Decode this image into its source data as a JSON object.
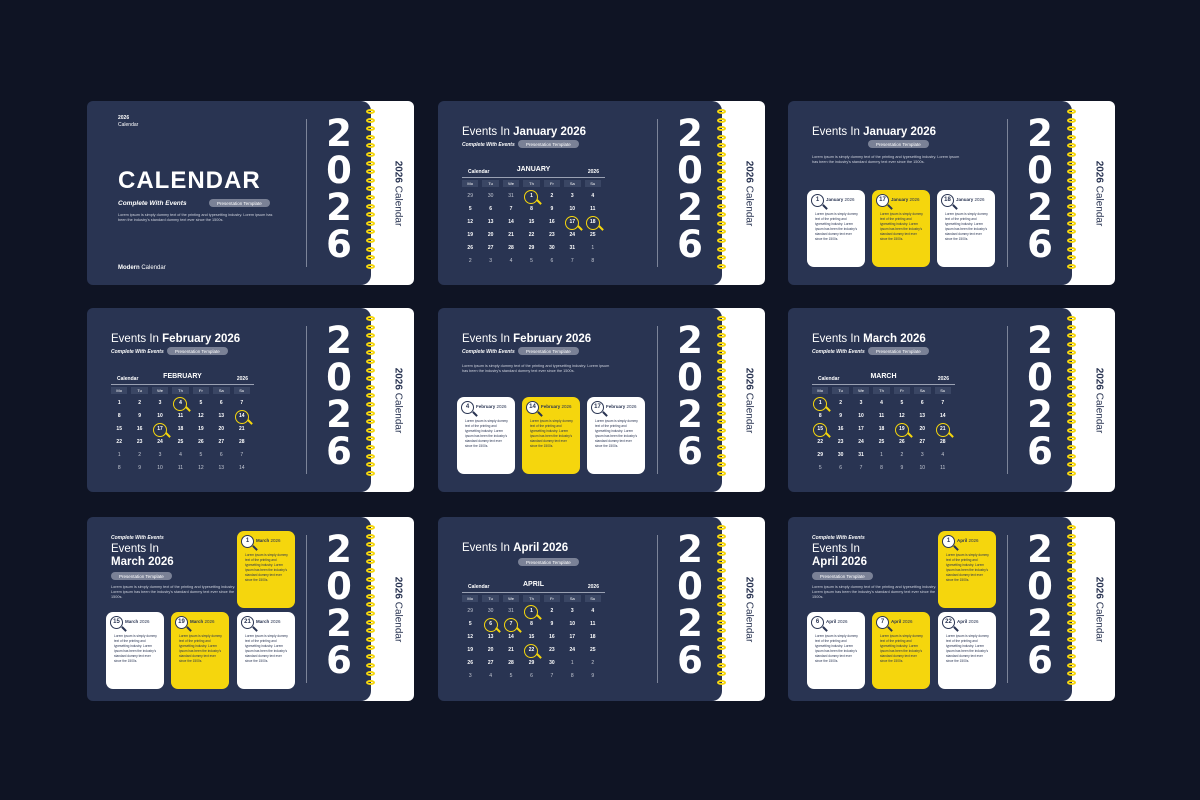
{
  "colors": {
    "background": "#0f1424",
    "slide": "#293452",
    "accent": "#f5d60d",
    "page": "#ffffff"
  },
  "year_digits": [
    "2",
    "0",
    "2",
    "6"
  ],
  "side_label": {
    "year": "2026",
    "word": "Calendar"
  },
  "weekdays": [
    "Mo",
    "Tu",
    "We",
    "Th",
    "Fr",
    "Sa",
    "Su"
  ],
  "lorem": "Lorem ipsum is simply dummy text of the printing and typesetting industry. Lorem ipsum has been the industry's standard dummy text ever since the 1500s.",
  "card_text": "Lorem ipsum is simply dummy text of the printing and typesetting industry. Lorem ipsum has been the industry's standard dummy text ever since the 1500s.",
  "slide1": {
    "top_year": "2026",
    "top_word": "Calendar",
    "title": "CALENDAR",
    "subtitle": "Complete With Events",
    "pill": "Presentation Template",
    "para": "Lorem ipsum is simply dummy text of the printing and typesetting industry. Lorem ipsum has been the industry's standard dummy text ever since the 1500s.",
    "footer_bold": "Modern",
    "footer": "Calendar"
  },
  "slide2": {
    "title_pre": "Events In",
    "title_bold": "January 2026",
    "subtitle": "Complete With Events",
    "pill": "Presentation Template",
    "cal_label": "Calendar",
    "month": "JANUARY",
    "year": "2026",
    "rows": [
      [
        "29",
        "30",
        "31",
        "1",
        "2",
        "3",
        "4"
      ],
      [
        "5",
        "6",
        "7",
        "8",
        "9",
        "10",
        "11"
      ],
      [
        "12",
        "13",
        "14",
        "15",
        "16",
        "17",
        "18"
      ],
      [
        "19",
        "20",
        "21",
        "22",
        "23",
        "24",
        "25"
      ],
      [
        "26",
        "27",
        "28",
        "29",
        "30",
        "31",
        "1"
      ],
      [
        "2",
        "3",
        "4",
        "5",
        "6",
        "7",
        "8"
      ]
    ]
  },
  "slide3": {
    "title_pre": "Events In",
    "title_bold": "January 2026",
    "pill": "Presentation Template",
    "para": "Lorem ipsum is simply dummy text of the printing and typesetting industry. Lorem ipsum has been the industry's standard dummy text ever since the 1500s.",
    "cards": [
      {
        "day": "1",
        "month": "January",
        "year": "2026"
      },
      {
        "day": "17",
        "month": "January",
        "year": "2026"
      },
      {
        "day": "18",
        "month": "January",
        "year": "2026"
      }
    ]
  },
  "slide4": {
    "title_pre": "Events In",
    "title_bold": "February 2026",
    "subtitle": "Complete With Events",
    "pill": "Presentation Template",
    "cal_label": "Calendar",
    "month": "FEBRUARY",
    "year": "2026",
    "rows": [
      [
        "1",
        "2",
        "3",
        "4",
        "5",
        "6",
        "7"
      ],
      [
        "8",
        "9",
        "10",
        "11",
        "12",
        "13",
        "14"
      ],
      [
        "15",
        "16",
        "17",
        "18",
        "19",
        "20",
        "21"
      ],
      [
        "22",
        "23",
        "24",
        "25",
        "26",
        "27",
        "28"
      ],
      [
        "1",
        "2",
        "3",
        "4",
        "5",
        "6",
        "7"
      ],
      [
        "8",
        "9",
        "10",
        "11",
        "12",
        "13",
        "14"
      ]
    ]
  },
  "slide5": {
    "title_pre": "Events In",
    "title_bold": "February 2026",
    "subtitle": "Complete With Events",
    "pill": "Presentation Template",
    "para": "Lorem ipsum is simply dummy text of the printing and typesetting industry. Lorem ipsum has been the industry's standard dummy text ever since the 1500s.",
    "cards": [
      {
        "day": "4",
        "month": "February",
        "year": "2026"
      },
      {
        "day": "14",
        "month": "February",
        "year": "2026"
      },
      {
        "day": "17",
        "month": "February",
        "year": "2026"
      }
    ]
  },
  "slide6": {
    "title_pre": "Events In",
    "title_bold": "March 2026",
    "subtitle": "Complete With Events",
    "pill": "Presentation Template",
    "cal_label": "Calendar",
    "month": "MARCH",
    "year": "2026",
    "rows": [
      [
        "1",
        "2",
        "3",
        "4",
        "5",
        "6",
        "7"
      ],
      [
        "8",
        "9",
        "10",
        "11",
        "12",
        "13",
        "14"
      ],
      [
        "15",
        "16",
        "17",
        "18",
        "19",
        "20",
        "21"
      ],
      [
        "22",
        "23",
        "24",
        "25",
        "26",
        "27",
        "28"
      ],
      [
        "29",
        "30",
        "31",
        "1",
        "2",
        "3",
        "4"
      ],
      [
        "5",
        "6",
        "7",
        "8",
        "9",
        "10",
        "11"
      ]
    ]
  },
  "slide7": {
    "subtitle": "Complete With Events",
    "title_pre": "Events In",
    "title_bold": "March 2026",
    "pill": "Presentation Template",
    "para": "Lorem ipsum is simply dummy text of the printing and typesetting industry. Lorem ipsum has been the industry's standard dummy text ever since the 1500s.",
    "cards": [
      {
        "day": "1",
        "month": "March",
        "year": "2026"
      },
      {
        "day": "15",
        "month": "March",
        "year": "2026"
      },
      {
        "day": "19",
        "month": "March",
        "year": "2026"
      },
      {
        "day": "21",
        "month": "March",
        "year": "2026"
      }
    ]
  },
  "slide8": {
    "title_pre": "Events In",
    "title_bold": "April 2026",
    "pill": "Presentation Template",
    "cal_label": "Calendar",
    "month": "APRIL",
    "year": "2026",
    "rows": [
      [
        "29",
        "30",
        "31",
        "1",
        "2",
        "3",
        "4"
      ],
      [
        "5",
        "6",
        "7",
        "8",
        "9",
        "10",
        "11"
      ],
      [
        "12",
        "13",
        "14",
        "15",
        "16",
        "17",
        "18"
      ],
      [
        "19",
        "20",
        "21",
        "22",
        "23",
        "24",
        "25"
      ],
      [
        "26",
        "27",
        "28",
        "29",
        "30",
        "1",
        "2"
      ],
      [
        "3",
        "4",
        "5",
        "6",
        "7",
        "8",
        "9"
      ]
    ]
  },
  "slide9": {
    "subtitle": "Complete With Events",
    "title_pre": "Events In",
    "title_bold": "April 2026",
    "pill": "Presentation Template",
    "para": "Lorem ipsum is simply dummy text of the printing and typesetting industry. Lorem ipsum has been the industry's standard dummy text ever since the 1500s.",
    "cards": [
      {
        "day": "1",
        "month": "April",
        "year": "2026"
      },
      {
        "day": "6",
        "month": "April",
        "year": "2026"
      },
      {
        "day": "7",
        "month": "April",
        "year": "2026"
      },
      {
        "day": "22",
        "month": "April",
        "year": "2026"
      }
    ]
  }
}
